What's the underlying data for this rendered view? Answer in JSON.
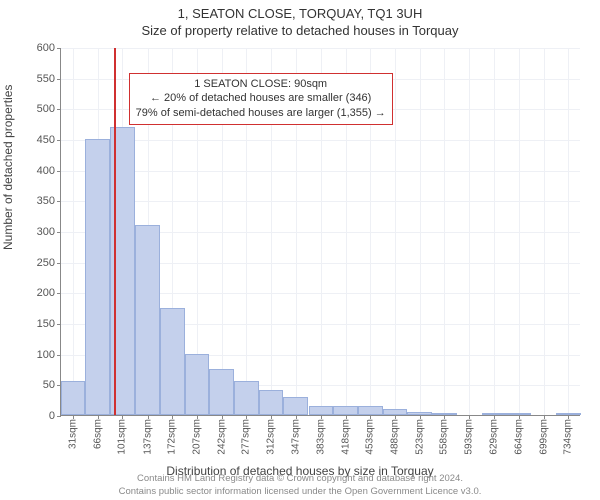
{
  "title_main": "1, SEATON CLOSE, TORQUAY, TQ1 3UH",
  "title_sub": "Size of property relative to detached houses in Torquay",
  "ylabel": "Number of detached properties",
  "xlabel": "Distribution of detached houses by size in Torquay",
  "chart": {
    "type": "histogram",
    "xlim": [
      14,
      752
    ],
    "ylim": [
      0,
      600
    ],
    "ytick_step": 50,
    "xtick_labels": [
      "31sqm",
      "66sqm",
      "101sqm",
      "137sqm",
      "172sqm",
      "207sqm",
      "242sqm",
      "277sqm",
      "312sqm",
      "347sqm",
      "383sqm",
      "418sqm",
      "453sqm",
      "488sqm",
      "523sqm",
      "558sqm",
      "593sqm",
      "629sqm",
      "664sqm",
      "699sqm",
      "734sqm"
    ],
    "xtick_values": [
      31,
      66,
      101,
      137,
      172,
      207,
      242,
      277,
      312,
      347,
      383,
      418,
      453,
      488,
      523,
      558,
      593,
      629,
      664,
      699,
      734
    ],
    "bar_width_data": 35.15,
    "bars": [
      {
        "x": 31,
        "y": 55
      },
      {
        "x": 66,
        "y": 450
      },
      {
        "x": 101,
        "y": 470
      },
      {
        "x": 137,
        "y": 310
      },
      {
        "x": 172,
        "y": 175
      },
      {
        "x": 207,
        "y": 100
      },
      {
        "x": 242,
        "y": 75
      },
      {
        "x": 277,
        "y": 55
      },
      {
        "x": 312,
        "y": 40
      },
      {
        "x": 347,
        "y": 30
      },
      {
        "x": 383,
        "y": 15
      },
      {
        "x": 418,
        "y": 15
      },
      {
        "x": 453,
        "y": 15
      },
      {
        "x": 488,
        "y": 10
      },
      {
        "x": 523,
        "y": 5
      },
      {
        "x": 558,
        "y": 3
      },
      {
        "x": 593,
        "y": 0
      },
      {
        "x": 629,
        "y": 3
      },
      {
        "x": 664,
        "y": 3
      },
      {
        "x": 699,
        "y": 0
      },
      {
        "x": 734,
        "y": 3
      }
    ],
    "marker_x": 90,
    "bar_fill": "#c4d0ec",
    "bar_stroke": "#9bb0dc",
    "marker_color": "#d03030",
    "grid_color": "#eef0f5",
    "background_color": "#ffffff"
  },
  "annotation": {
    "line1": "1 SEATON CLOSE: 90sqm",
    "line2": "← 20% of detached houses are smaller (346)",
    "line3": "79% of semi-detached houses are larger (1,355) →",
    "x_data": 110,
    "y_data": 560
  },
  "footer_line1": "Contains HM Land Registry data © Crown copyright and database right 2024.",
  "footer_line2": "Contains public sector information licensed under the Open Government Licence v3.0."
}
